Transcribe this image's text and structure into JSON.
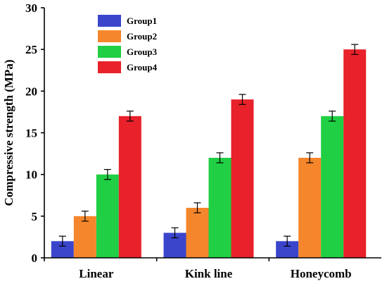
{
  "chart_data": {
    "type": "bar",
    "title": "",
    "xlabel": "",
    "ylabel": "Compressive strength (MPa)",
    "ylim": [
      0,
      30
    ],
    "yticks": [
      0,
      5,
      10,
      15,
      20,
      25,
      30
    ],
    "categories": [
      "Linear",
      "Kink line",
      "Honeycomb"
    ],
    "series": [
      {
        "name": "Group1",
        "color": "#3b45cc",
        "values": [
          2,
          3,
          2
        ],
        "errors": [
          0.6,
          0.6,
          0.6
        ]
      },
      {
        "name": "Group2",
        "color": "#f5862b",
        "values": [
          5,
          6,
          12
        ],
        "errors": [
          0.6,
          0.6,
          0.6
        ]
      },
      {
        "name": "Group3",
        "color": "#20cf44",
        "values": [
          10,
          12,
          17
        ],
        "errors": [
          0.6,
          0.6,
          0.6
        ]
      },
      {
        "name": "Group4",
        "color": "#e8212a",
        "values": [
          17,
          19,
          25
        ],
        "errors": [
          0.6,
          0.6,
          0.6
        ]
      }
    ],
    "legend_position": "top-left",
    "grid": false
  }
}
